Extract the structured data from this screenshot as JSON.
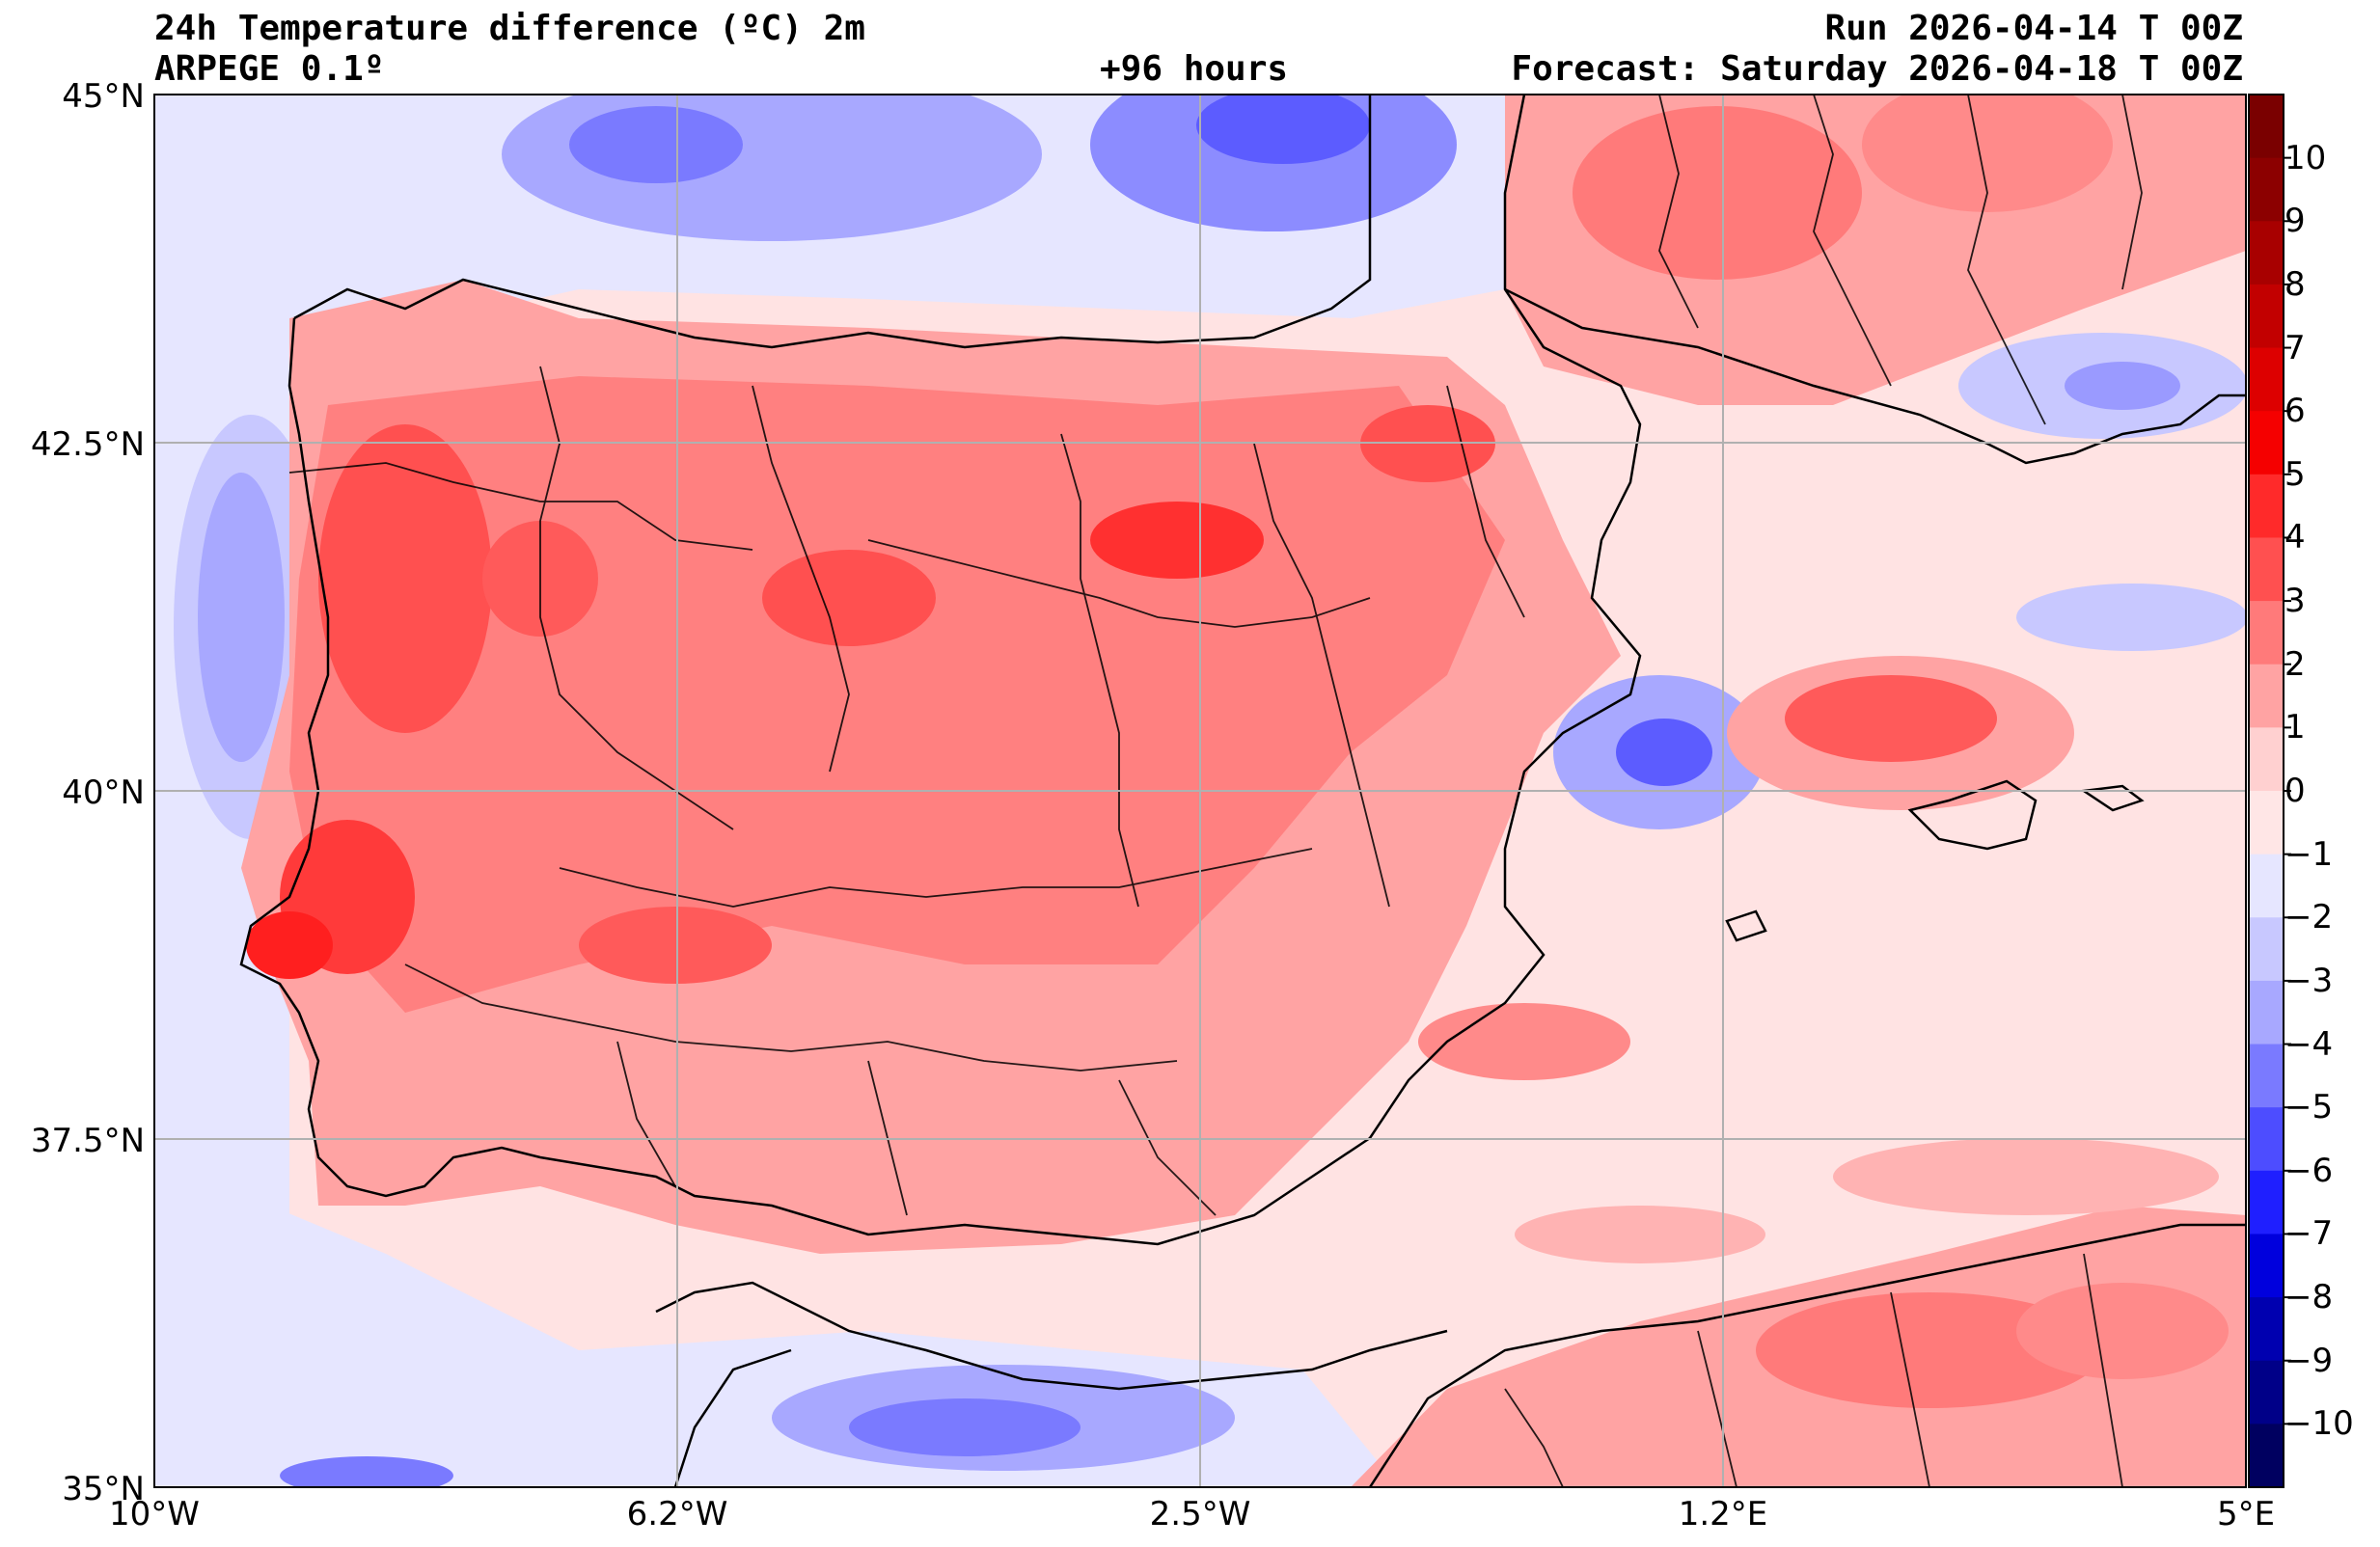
{
  "header": {
    "title": "24h Temperature difference (ºC) 2m",
    "model": "ARPEGE 0.1º",
    "lead_time": "+96 hours",
    "run": "Run 2026-04-14 T 00Z",
    "forecast": "Forecast: Saturday 2026-04-18 T 00Z"
  },
  "axes": {
    "lat_labels": [
      "45°N",
      "42.5°N",
      "40°N",
      "37.5°N",
      "35°N"
    ],
    "lon_labels": [
      "10°W",
      "6.2°W",
      "2.5°W",
      "1.2°E",
      "5°E"
    ]
  },
  "colorbar": {
    "labels": [
      "10",
      "9",
      "8",
      "7",
      "6",
      "5",
      "4",
      "3",
      "2",
      "1",
      "0",
      "−1",
      "−2",
      "−3",
      "−4",
      "−5",
      "−6",
      "−7",
      "−8",
      "−9",
      "−10"
    ],
    "colors": [
      "#7a0000",
      "#8c0000",
      "#a80000",
      "#c20000",
      "#dd0000",
      "#f50000",
      "#ff2a2a",
      "#ff5050",
      "#ff7a7a",
      "#ffa3a3",
      "#ffd0d0",
      "#ffe6e6",
      "#e6e6ff",
      "#c8c8ff",
      "#a8a8ff",
      "#7a7aff",
      "#4d4dff",
      "#1f1fff",
      "#0000dd",
      "#0000b0",
      "#000088",
      "#000060"
    ]
  },
  "map": {
    "region": "Iberian Peninsula",
    "lat_range": [
      35,
      45
    ],
    "lon_range": [
      -10,
      5
    ]
  }
}
